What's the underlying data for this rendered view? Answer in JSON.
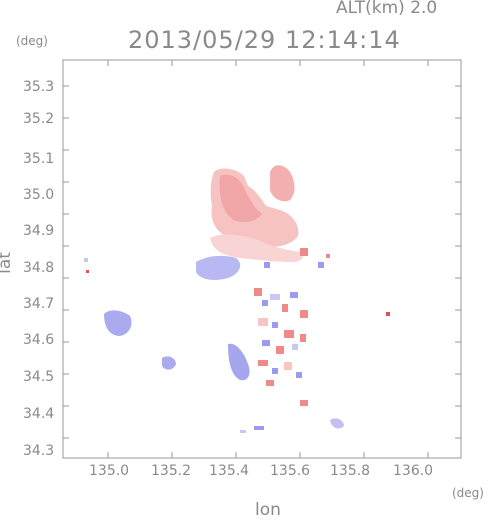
{
  "header": {
    "altitude_label": "ALT(km) 2.0",
    "datetime": "2013/05/29 12:14:14"
  },
  "axes": {
    "y_unit": "(deg)",
    "x_unit": "(deg)",
    "y_label": "lat",
    "x_label": "lon",
    "x_ticks": [
      "135.0",
      "135.2",
      "135.4",
      "135.6",
      "135.8",
      "136.0"
    ],
    "y_ticks": [
      "35.3",
      "35.2",
      "35.1",
      "35.0",
      "34.9",
      "34.8",
      "34.7",
      "34.6",
      "34.5",
      "34.4",
      "34.3"
    ]
  },
  "colors": {
    "frame": "#9a9a9a",
    "text": "#8a8a8a",
    "positive": "#f08a8a",
    "positive_light": "#f6c6c6",
    "negative": "#9a9af0",
    "negative_light": "#c8c8f4"
  }
}
